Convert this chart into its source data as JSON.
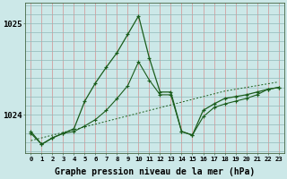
{
  "xlabel": "Graphe pression niveau de la mer (hPa)",
  "background_color": "#cce8e8",
  "grid_color_v": "#d49090",
  "grid_color_h": "#90b8b8",
  "line_color": "#1a5c1a",
  "yticks": [
    1024,
    1025
  ],
  "ylim": [
    1023.58,
    1025.22
  ],
  "xlim": [
    -0.5,
    23.5
  ],
  "xticks": [
    0,
    1,
    2,
    3,
    4,
    5,
    6,
    7,
    8,
    9,
    10,
    11,
    12,
    13,
    14,
    15,
    16,
    17,
    18,
    19,
    20,
    21,
    22,
    23
  ],
  "line_main": [
    1023.8,
    1023.68,
    1023.75,
    1023.8,
    1023.85,
    1024.15,
    1024.35,
    1024.52,
    1024.68,
    1024.88,
    1025.08,
    1024.62,
    1024.25,
    1024.25,
    1023.82,
    1023.78,
    1024.05,
    1024.12,
    1024.18,
    1024.2,
    1024.22,
    1024.25,
    1024.28,
    1024.3
  ],
  "line_secondary": [
    1023.82,
    1023.68,
    1023.75,
    1023.8,
    1023.82,
    1023.88,
    1023.95,
    1024.05,
    1024.18,
    1024.32,
    1024.58,
    1024.38,
    1024.22,
    1024.22,
    1023.82,
    1023.78,
    1023.98,
    1024.08,
    1024.12,
    1024.15,
    1024.18,
    1024.22,
    1024.28,
    1024.3
  ],
  "line_trend": [
    1023.72,
    1023.75,
    1023.78,
    1023.81,
    1023.84,
    1023.87,
    1023.9,
    1023.93,
    1023.96,
    1023.99,
    1024.02,
    1024.05,
    1024.08,
    1024.11,
    1024.14,
    1024.17,
    1024.2,
    1024.23,
    1024.26,
    1024.28,
    1024.3,
    1024.32,
    1024.34,
    1024.36
  ],
  "xlabel_fontsize": 7,
  "xtick_fontsize": 5.2,
  "ytick_fontsize": 6.5
}
